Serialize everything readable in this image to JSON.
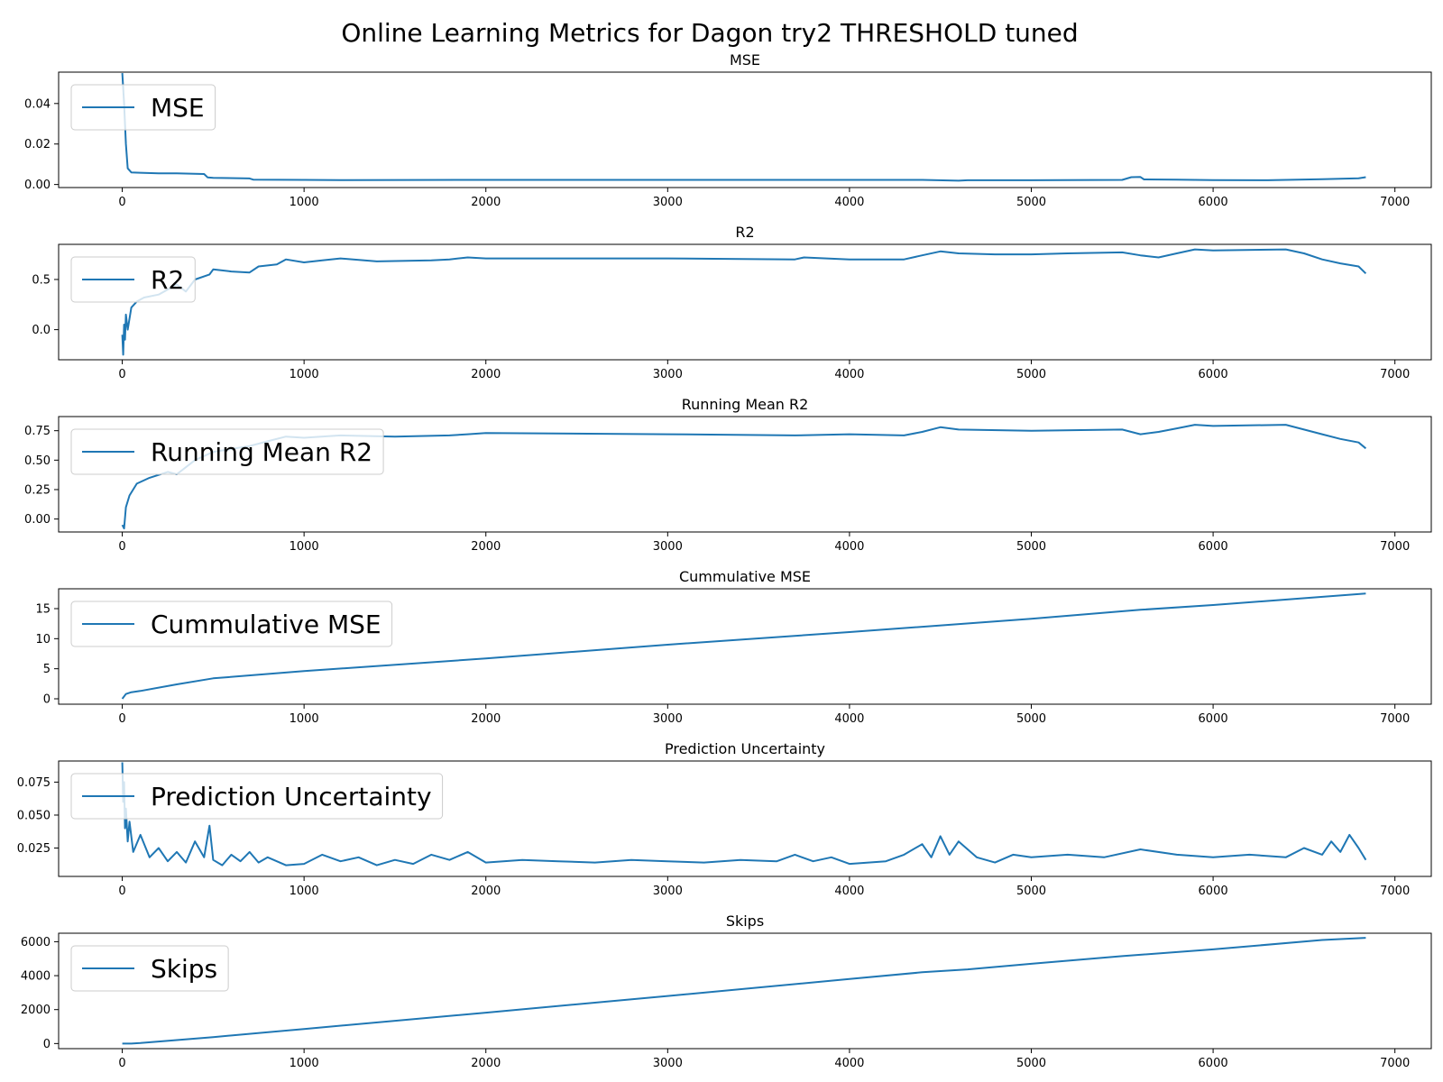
{
  "figure": {
    "title": "Online Learning Metrics for Dagon try2 THRESHOLD tuned"
  },
  "colors": {
    "series": "#1f77b4",
    "axes": "#000000",
    "legend_border": "#cccccc"
  },
  "chart_data": [
    {
      "type": "line",
      "title": "MSE",
      "legend": [
        "MSE"
      ],
      "legend_position": "upper-left",
      "xlim": [
        -350,
        7200
      ],
      "ylim": [
        -0.0015,
        0.0555
      ],
      "xticks": [
        0,
        1000,
        2000,
        3000,
        4000,
        5000,
        6000,
        7000
      ],
      "yticks": [
        0.0,
        0.02,
        0.04
      ],
      "ytick_labels": [
        "0.00",
        "0.02",
        "0.04"
      ],
      "series": [
        {
          "name": "MSE",
          "x": [
            0,
            10,
            20,
            30,
            50,
            100,
            200,
            300,
            450,
            470,
            500,
            700,
            720,
            1000,
            1200,
            2000,
            3000,
            4000,
            4400,
            4600,
            4650,
            5000,
            5500,
            5550,
            5600,
            5620,
            5800,
            6000,
            6300,
            6600,
            6800,
            6840
          ],
          "y": [
            0.055,
            0.04,
            0.02,
            0.008,
            0.006,
            0.0058,
            0.0055,
            0.0055,
            0.0052,
            0.0035,
            0.0033,
            0.003,
            0.0024,
            0.0023,
            0.0022,
            0.0023,
            0.0023,
            0.0023,
            0.0023,
            0.0019,
            0.0021,
            0.0021,
            0.0023,
            0.0036,
            0.0037,
            0.0025,
            0.0024,
            0.0022,
            0.0021,
            0.0026,
            0.0031,
            0.0036
          ]
        }
      ]
    },
    {
      "type": "line",
      "title": "R2",
      "legend": [
        "R2"
      ],
      "legend_position": "upper-left",
      "xlim": [
        -350,
        7200
      ],
      "ylim": [
        -0.3,
        0.85
      ],
      "xticks": [
        0,
        1000,
        2000,
        3000,
        4000,
        5000,
        6000,
        7000
      ],
      "yticks": [
        0.0,
        0.5
      ],
      "ytick_labels": [
        "0.0",
        "0.5"
      ],
      "series": [
        {
          "name": "R2",
          "x": [
            0,
            5,
            10,
            15,
            20,
            30,
            50,
            80,
            120,
            200,
            300,
            350,
            400,
            480,
            500,
            600,
            700,
            750,
            850,
            900,
            1000,
            1100,
            1200,
            1400,
            1700,
            1800,
            1900,
            2000,
            3000,
            3700,
            3750,
            4000,
            4300,
            4400,
            4500,
            4600,
            4800,
            5000,
            5200,
            5500,
            5600,
            5700,
            5800,
            5900,
            6000,
            6400,
            6500,
            6600,
            6700,
            6800,
            6840
          ],
          "y": [
            -0.05,
            -0.25,
            0.05,
            -0.1,
            0.15,
            0.0,
            0.22,
            0.28,
            0.32,
            0.35,
            0.45,
            0.38,
            0.5,
            0.55,
            0.6,
            0.58,
            0.57,
            0.63,
            0.65,
            0.7,
            0.67,
            0.69,
            0.71,
            0.68,
            0.69,
            0.7,
            0.72,
            0.71,
            0.71,
            0.7,
            0.72,
            0.7,
            0.7,
            0.74,
            0.78,
            0.76,
            0.75,
            0.75,
            0.76,
            0.77,
            0.74,
            0.72,
            0.76,
            0.8,
            0.79,
            0.8,
            0.76,
            0.7,
            0.66,
            0.63,
            0.56
          ]
        }
      ]
    },
    {
      "type": "line",
      "title": "Running Mean R2",
      "legend": [
        "Running Mean R2"
      ],
      "legend_position": "upper-left",
      "xlim": [
        -350,
        7200
      ],
      "ylim": [
        -0.11,
        0.87
      ],
      "xticks": [
        0,
        1000,
        2000,
        3000,
        4000,
        5000,
        6000,
        7000
      ],
      "yticks": [
        0.0,
        0.25,
        0.5,
        0.75
      ],
      "ytick_labels": [
        "0.00",
        "0.25",
        "0.50",
        "0.75"
      ],
      "series": [
        {
          "name": "Running Mean R2",
          "x": [
            0,
            10,
            20,
            40,
            80,
            150,
            250,
            300,
            400,
            500,
            700,
            800,
            900,
            1000,
            1200,
            1500,
            1800,
            1900,
            2000,
            3000,
            3700,
            4000,
            4300,
            4400,
            4500,
            4600,
            5000,
            5500,
            5600,
            5700,
            5800,
            5900,
            6000,
            6400,
            6500,
            6600,
            6700,
            6800,
            6840
          ],
          "y": [
            -0.05,
            -0.08,
            0.1,
            0.2,
            0.3,
            0.35,
            0.4,
            0.38,
            0.5,
            0.57,
            0.62,
            0.66,
            0.7,
            0.69,
            0.71,
            0.7,
            0.71,
            0.72,
            0.73,
            0.72,
            0.71,
            0.72,
            0.71,
            0.74,
            0.78,
            0.76,
            0.75,
            0.76,
            0.72,
            0.74,
            0.77,
            0.8,
            0.79,
            0.8,
            0.76,
            0.72,
            0.68,
            0.65,
            0.6
          ]
        }
      ]
    },
    {
      "type": "line",
      "title": "Cummulative MSE",
      "legend": [
        "Cummulative MSE"
      ],
      "legend_position": "upper-left",
      "xlim": [
        -350,
        7200
      ],
      "ylim": [
        -0.9,
        18.3
      ],
      "xticks": [
        0,
        1000,
        2000,
        3000,
        4000,
        5000,
        6000,
        7000
      ],
      "yticks": [
        0,
        5,
        10,
        15
      ],
      "ytick_labels": [
        "0",
        "5",
        "10",
        "15"
      ],
      "series": [
        {
          "name": "Cummulative MSE",
          "x": [
            0,
            20,
            50,
            100,
            300,
            500,
            1000,
            2000,
            3000,
            4000,
            5000,
            5600,
            6000,
            6840
          ],
          "y": [
            0.0,
            0.8,
            1.1,
            1.3,
            2.4,
            3.4,
            4.6,
            6.7,
            9.0,
            11.1,
            13.3,
            14.8,
            15.6,
            17.5
          ]
        }
      ]
    },
    {
      "type": "line",
      "title": "Prediction Uncertainty",
      "legend": [
        "Prediction Uncertainty"
      ],
      "legend_position": "upper-left",
      "xlim": [
        -350,
        7200
      ],
      "ylim": [
        0.0035,
        0.091
      ],
      "xticks": [
        0,
        1000,
        2000,
        3000,
        4000,
        5000,
        6000,
        7000
      ],
      "yticks": [
        0.025,
        0.05,
        0.075
      ],
      "ytick_labels": [
        "0.025",
        "0.050",
        "0.075"
      ],
      "series": [
        {
          "name": "Prediction Uncertainty",
          "x": [
            0,
            5,
            10,
            15,
            20,
            30,
            40,
            60,
            100,
            150,
            200,
            250,
            300,
            350,
            400,
            450,
            480,
            500,
            550,
            600,
            650,
            700,
            750,
            800,
            900,
            1000,
            1100,
            1200,
            1300,
            1400,
            1500,
            1600,
            1700,
            1800,
            1900,
            2000,
            2200,
            2400,
            2600,
            2800,
            3000,
            3200,
            3400,
            3600,
            3700,
            3800,
            3900,
            4000,
            4200,
            4300,
            4400,
            4450,
            4500,
            4550,
            4600,
            4700,
            4800,
            4900,
            5000,
            5200,
            5400,
            5600,
            5800,
            6000,
            6200,
            6400,
            6500,
            6600,
            6650,
            6700,
            6750,
            6800,
            6840
          ],
          "y": [
            0.09,
            0.06,
            0.075,
            0.04,
            0.055,
            0.03,
            0.045,
            0.022,
            0.035,
            0.018,
            0.025,
            0.015,
            0.022,
            0.014,
            0.03,
            0.018,
            0.042,
            0.016,
            0.012,
            0.02,
            0.015,
            0.022,
            0.014,
            0.018,
            0.012,
            0.013,
            0.02,
            0.015,
            0.018,
            0.012,
            0.016,
            0.013,
            0.02,
            0.016,
            0.022,
            0.014,
            0.016,
            0.015,
            0.014,
            0.016,
            0.015,
            0.014,
            0.016,
            0.015,
            0.02,
            0.015,
            0.018,
            0.013,
            0.015,
            0.02,
            0.028,
            0.018,
            0.034,
            0.02,
            0.03,
            0.018,
            0.014,
            0.02,
            0.018,
            0.02,
            0.018,
            0.024,
            0.02,
            0.018,
            0.02,
            0.018,
            0.025,
            0.02,
            0.03,
            0.022,
            0.035,
            0.025,
            0.016
          ]
        }
      ]
    },
    {
      "type": "line",
      "title": "Skips",
      "legend": [
        "Skips"
      ],
      "legend_position": "upper-left",
      "xlim": [
        -350,
        7200
      ],
      "ylim": [
        -300,
        6500
      ],
      "xticks": [
        0,
        1000,
        2000,
        3000,
        4000,
        5000,
        6000,
        7000
      ],
      "yticks": [
        0,
        2000,
        4000,
        6000
      ],
      "ytick_labels": [
        "0",
        "2000",
        "4000",
        "6000"
      ],
      "series": [
        {
          "name": "Skips",
          "x": [
            0,
            50,
            100,
            500,
            1000,
            2000,
            3000,
            4000,
            4400,
            4650,
            5000,
            5500,
            6000,
            6600,
            6840
          ],
          "y": [
            0,
            0,
            30,
            380,
            860,
            1820,
            2800,
            3800,
            4200,
            4370,
            4700,
            5150,
            5550,
            6100,
            6230
          ]
        }
      ]
    }
  ]
}
